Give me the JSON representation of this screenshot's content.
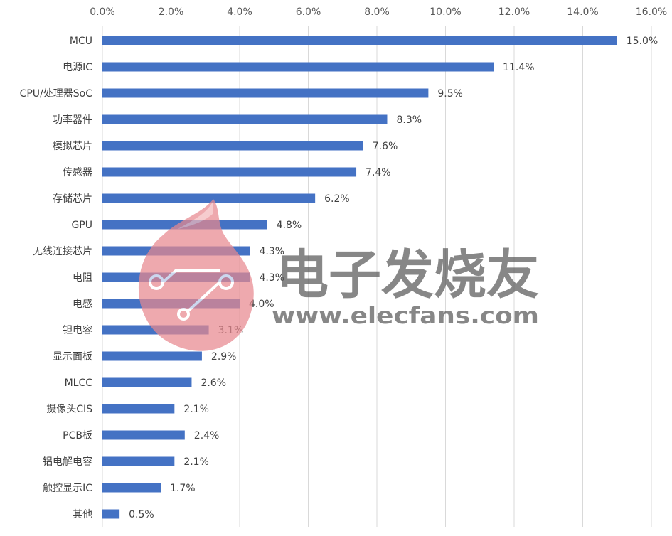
{
  "chart_data": {
    "type": "bar",
    "orientation": "horizontal",
    "categories": [
      "MCU",
      "电源IC",
      "CPU/处理器SoC",
      "功率器件",
      "模拟芯片",
      "传感器",
      "存储芯片",
      "GPU",
      "无线连接芯片",
      "电阻",
      "电感",
      "钽电容",
      "显示面板",
      "MLCC",
      "摄像头CIS",
      "PCB板",
      "铝电解电容",
      "触控显示IC",
      "其他"
    ],
    "values": [
      15.0,
      11.4,
      9.5,
      8.3,
      7.6,
      7.4,
      6.2,
      4.8,
      4.3,
      4.3,
      4.0,
      3.1,
      2.9,
      2.6,
      2.1,
      2.4,
      2.1,
      1.7,
      0.5
    ],
    "value_labels": [
      "15.0%",
      "11.4%",
      "9.5%",
      "8.3%",
      "7.6%",
      "7.4%",
      "6.2%",
      "4.8%",
      "4.3%",
      "4.3%",
      "4.0%",
      "3.1%",
      "2.9%",
      "2.6%",
      "2.1%",
      "2.4%",
      "2.1%",
      "1.7%",
      "0.5%"
    ],
    "x_ticks": [
      "0.0%",
      "2.0%",
      "4.0%",
      "6.0%",
      "8.0%",
      "10.0%",
      "12.0%",
      "14.0%",
      "16.0%"
    ],
    "xlim": [
      0,
      16
    ],
    "x_axis_position": "top",
    "grid": true,
    "bar_color": "#4472C4",
    "grid_color": "#D9D9D9",
    "title": "",
    "xlabel": "",
    "ylabel": ""
  },
  "watermark": {
    "title": "电子发烧友",
    "url": "www.elecfans.com",
    "text_color": "#5a5a5a",
    "logo_color": "#e8898f"
  }
}
